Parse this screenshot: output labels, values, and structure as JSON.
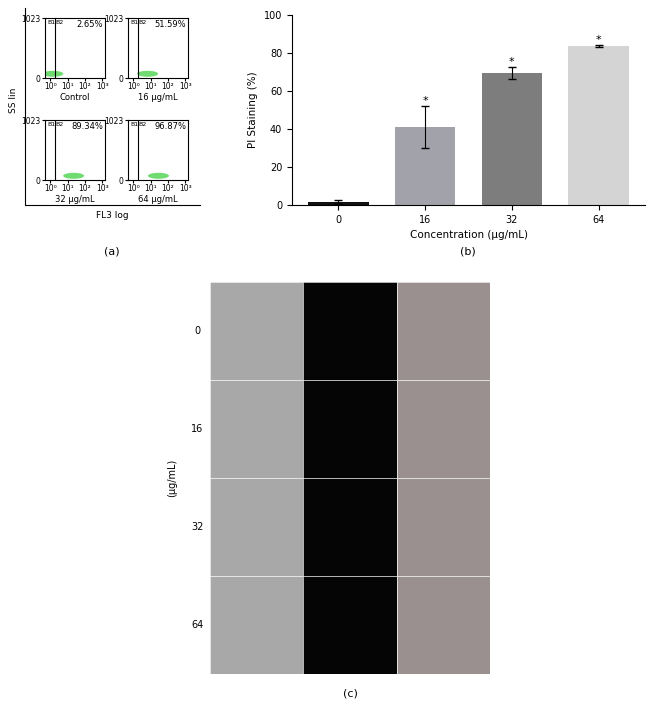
{
  "chart_data": [
    {
      "type": "scatter",
      "caption": "Control",
      "gate_x": 2,
      "regions": [
        "B1",
        "B2"
      ],
      "gate_value": 2.65,
      "gate_label": "2.65%",
      "xlim": [
        0.5,
        1400
      ],
      "ylim": [
        0,
        1023
      ],
      "log": "x",
      "xticks": [
        {
          "value": 1,
          "label": "10⁰"
        },
        {
          "value": 10,
          "label": "10¹"
        },
        {
          "value": 100,
          "label": "10²"
        },
        {
          "value": 1000,
          "label": "10³"
        }
      ],
      "yticks": [
        0,
        1023
      ],
      "color": "#33cc33"
    },
    {
      "type": "scatter",
      "caption": "16 μg/mL",
      "gate_x": 2,
      "regions": [
        "B1",
        "B2"
      ],
      "gate_value": 51.59,
      "gate_label": "51.59%",
      "xlim": [
        0.5,
        1400
      ],
      "ylim": [
        0,
        1023
      ],
      "log": "x",
      "xticks": [
        {
          "value": 1,
          "label": "10⁰"
        },
        {
          "value": 10,
          "label": "10¹"
        },
        {
          "value": 100,
          "label": "10²"
        },
        {
          "value": 1000,
          "label": "10³"
        }
      ],
      "yticks": [
        0,
        1023
      ],
      "color": "#33cc33"
    },
    {
      "type": "scatter",
      "caption": "32 μg/mL",
      "gate_x": 2,
      "regions": [
        "B1",
        "B2"
      ],
      "gate_value": 89.34,
      "gate_label": "89.34%",
      "xlim": [
        0.5,
        1400
      ],
      "ylim": [
        0,
        1023
      ],
      "log": "x",
      "xticks": [
        {
          "value": 1,
          "label": "10⁰"
        },
        {
          "value": 10,
          "label": "10¹"
        },
        {
          "value": 100,
          "label": "10²"
        },
        {
          "value": 1000,
          "label": "10³"
        }
      ],
      "yticks": [
        0,
        1023
      ],
      "color": "#33cc33"
    },
    {
      "type": "scatter",
      "caption": "64 μg/mL",
      "gate_x": 2,
      "regions": [
        "B1",
        "B2"
      ],
      "gate_value": 96.87,
      "gate_label": "96.87%",
      "xlim": [
        0.5,
        1400
      ],
      "ylim": [
        0,
        1023
      ],
      "log": "x",
      "xticks": [
        {
          "value": 1,
          "label": "10⁰"
        },
        {
          "value": 10,
          "label": "10¹"
        },
        {
          "value": 100,
          "label": "10²"
        },
        {
          "value": 1000,
          "label": "10³"
        }
      ],
      "yticks": [
        0,
        1023
      ],
      "color": "#33cc33"
    },
    {
      "type": "bar",
      "xlabel": "Concentration (μg/mL)",
      "ylabel": "PI Staining (%)",
      "categories": [
        "0",
        "16",
        "32",
        "64"
      ],
      "values": [
        1.5,
        41,
        69.5,
        83.5
      ],
      "errors": [
        1,
        11,
        3,
        0.5
      ],
      "significance": [
        null,
        "*",
        "*",
        "*"
      ],
      "colors": [
        "#111111",
        "#a2a2aa",
        "#7d7d7d",
        "#d4d4d4"
      ],
      "ylim": [
        0,
        100
      ],
      "yticks": [
        0,
        20,
        40,
        60,
        80,
        100
      ]
    }
  ],
  "flow_group": {
    "xlabel": "FL3 log",
    "ylabel": "SS lin",
    "panel_label": "(a)"
  },
  "bar_group": {
    "panel_label": "(b)"
  },
  "image_grid": {
    "row_labels": [
      "0",
      "16",
      "32",
      "64"
    ],
    "ylabel": "(μg/mL)",
    "panel_label": "(c)"
  }
}
